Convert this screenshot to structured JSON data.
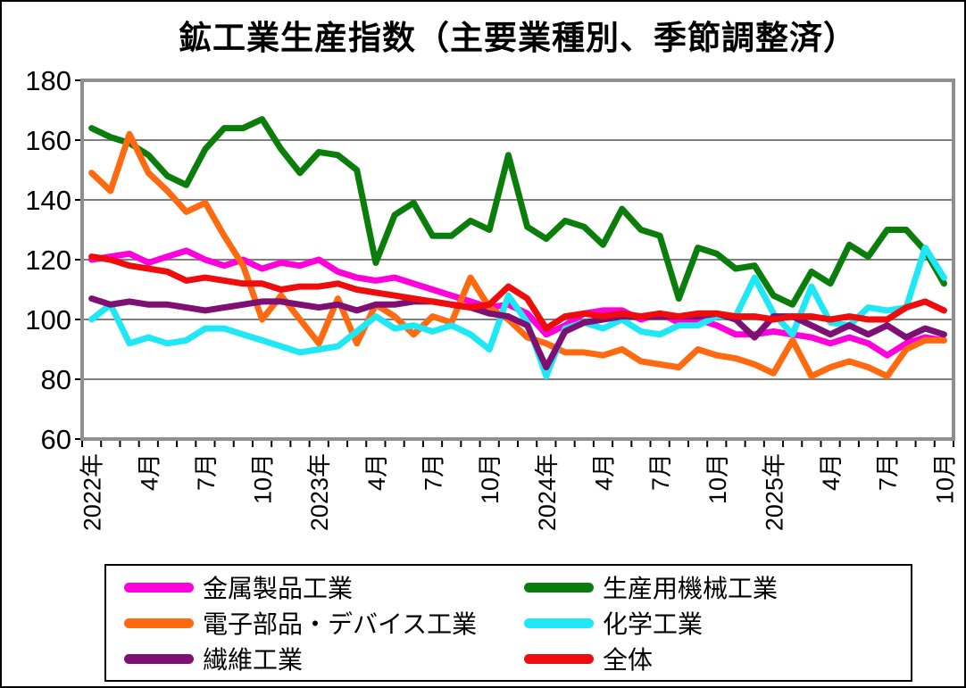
{
  "title": "鉱工業生産指数（主要業種別、季節調整済）",
  "chart_data": {
    "type": "line",
    "title": "鉱工業生産指数（主要業種別、季節調整済）",
    "frequency": "monthly",
    "x_start": "2022-01",
    "x_end": "2025-10",
    "n_points": 46,
    "x_tick_labels": [
      "2022年",
      "4月",
      "7月",
      "10月",
      "2023年",
      "4月",
      "7月",
      "10月",
      "2024年",
      "4月",
      "7月",
      "10月",
      "2025年",
      "4月",
      "7月",
      "10月"
    ],
    "x_tick_every_months": 3,
    "ylim": [
      60,
      180
    ],
    "y_tick_step": 20,
    "y_tick_labels": [
      "180",
      "160",
      "140",
      "120",
      "100",
      "80",
      "60"
    ],
    "grid": "horizontal",
    "legend_position": "bottom",
    "plot_border_color": "#8F8F8F",
    "gridline_color": "#7F7F7F",
    "series": [
      {
        "name": "金属製品工業",
        "color": "#FF00DC",
        "values": [
          120,
          121,
          122,
          119,
          121,
          123,
          120,
          118,
          120,
          117,
          119,
          118,
          120,
          116,
          114,
          113,
          114,
          112,
          110,
          108,
          106,
          104,
          105,
          102,
          95,
          98,
          102,
          103,
          103,
          100,
          102,
          99,
          100,
          98,
          95,
          95,
          96,
          95,
          94,
          92,
          94,
          92,
          88,
          92,
          94,
          93
        ]
      },
      {
        "name": "生産用機械工業",
        "color": "#0B7D0B",
        "values": [
          164,
          161,
          159,
          155,
          148,
          145,
          157,
          164,
          164,
          167,
          157,
          149,
          156,
          155,
          150,
          119,
          135,
          139,
          128,
          128,
          133,
          130,
          155,
          131,
          127,
          133,
          131,
          125,
          137,
          130,
          128,
          107,
          124,
          122,
          117,
          118,
          108,
          105,
          116,
          112,
          125,
          121,
          130,
          130,
          123,
          112
        ]
      },
      {
        "name": "電子部品・デバイス工業",
        "color": "#FF6A10",
        "values": [
          149,
          143,
          162,
          149,
          143,
          136,
          139,
          128,
          118,
          100,
          108,
          100,
          92,
          107,
          92,
          105,
          101,
          95,
          101,
          99,
          114,
          104,
          100,
          94,
          92,
          89,
          89,
          88,
          90,
          86,
          85,
          84,
          90,
          88,
          87,
          85,
          82,
          93,
          81,
          84,
          86,
          84,
          81,
          90,
          93,
          93
        ]
      },
      {
        "name": "化学工業",
        "color": "#1FE8F5",
        "values": [
          100,
          105,
          92,
          94,
          92,
          93,
          97,
          97,
          95,
          93,
          91,
          89,
          90,
          91,
          96,
          101,
          97,
          98,
          96,
          98,
          95,
          90,
          108,
          99,
          81,
          97,
          99,
          97,
          100,
          96,
          95,
          98,
          98,
          101,
          101,
          114,
          102,
          95,
          111,
          99,
          98,
          104,
          103,
          104,
          124,
          114
        ]
      },
      {
        "name": "繊維工業",
        "color": "#7D1072",
        "values": [
          107,
          105,
          106,
          105,
          105,
          104,
          103,
          104,
          105,
          106,
          106,
          105,
          104,
          105,
          103,
          105,
          105,
          106,
          106,
          105,
          104,
          102,
          101,
          98,
          84,
          96,
          99,
          100,
          101,
          101,
          101,
          101,
          101,
          102,
          100,
          94,
          101,
          101,
          98,
          95,
          98,
          95,
          98,
          94,
          97,
          95
        ]
      },
      {
        "name": "全体",
        "color": "#EE0C0C",
        "values": [
          121,
          120,
          118,
          117,
          116,
          113,
          114,
          113,
          112,
          112,
          110,
          111,
          111,
          112,
          110,
          109,
          108,
          107,
          106,
          105,
          104,
          105,
          111,
          107,
          97,
          101,
          102,
          101,
          102,
          101,
          102,
          101,
          102,
          102,
          101,
          101,
          100,
          101,
          101,
          100,
          101,
          100,
          100,
          104,
          106,
          103
        ]
      }
    ]
  }
}
